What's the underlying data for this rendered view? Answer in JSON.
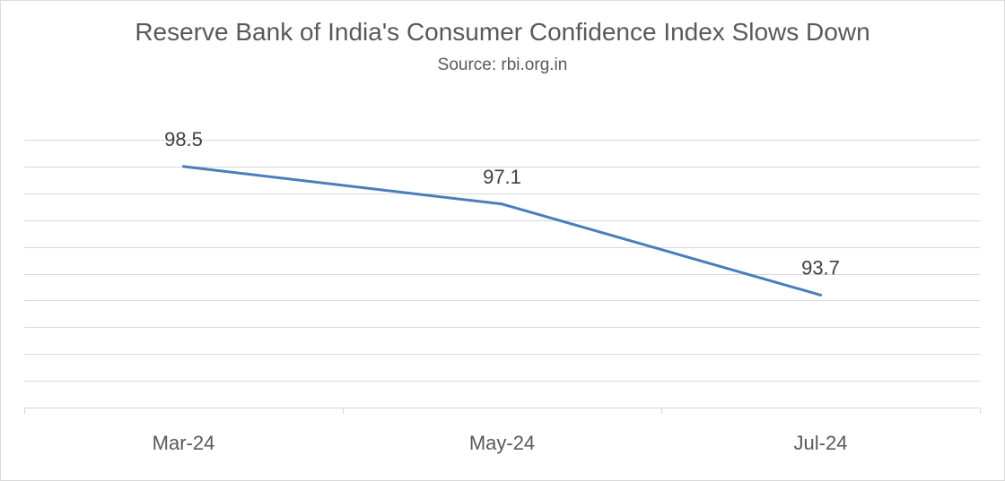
{
  "chart_data": {
    "type": "line",
    "title": "Reserve Bank of India's Consumer Confidence Index Slows Down",
    "subtitle": "Source: rbi.org.in",
    "categories": [
      "Mar-24",
      "May-24",
      "Jul-24"
    ],
    "series": [
      {
        "values": [
          98.5,
          97.1,
          93.7
        ],
        "color": "#4a7ebb"
      }
    ],
    "ylim": [
      89.5,
      99.5
    ],
    "grid": true,
    "gridline_step": 1,
    "show_y_axis_labels": false,
    "data_labels": true
  }
}
